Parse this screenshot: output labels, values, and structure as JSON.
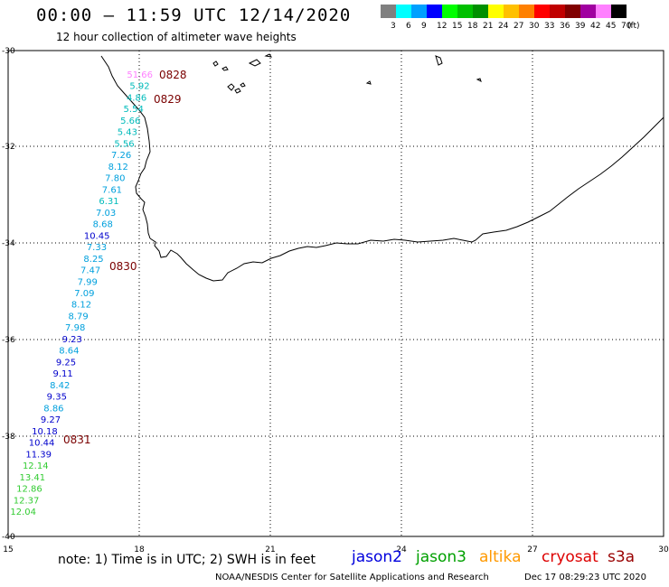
{
  "title": "00:00 – 11:59 UTC 12/14/2020",
  "subtitle": "12 hour collection of altimeter wave heights",
  "scale": {
    "labels": [
      "3",
      "6",
      "9",
      "12",
      "15",
      "18",
      "21",
      "24",
      "27",
      "30",
      "33",
      "36",
      "39",
      "42",
      "45",
      "70"
    ],
    "unit": "(ft)",
    "colors": [
      "#808080",
      "#00ffff",
      "#00a0ff",
      "#0000ff",
      "#00ff00",
      "#00c000",
      "#009000",
      "#ffff00",
      "#ffc000",
      "#ff8000",
      "#ff0000",
      "#c00000",
      "#800000",
      "#a000a0",
      "#ff80ff",
      "#000000"
    ]
  },
  "axes": {
    "lat_labels": [
      "-30",
      "-32",
      "-34",
      "-36",
      "-38",
      "-40"
    ],
    "lon_labels": [
      "15",
      "18",
      "21",
      "24",
      "27",
      "30"
    ]
  },
  "track": {
    "values": [
      "51.66",
      "5.92",
      "4.86",
      "5.54",
      "5.66",
      "5.43",
      "5.56",
      "7.26",
      "8.12",
      "7.80",
      "7.61",
      "6.31",
      "7.03",
      "8.68",
      "10.45",
      "7.33",
      "8.25",
      "7.47",
      "7.99",
      "7.09",
      "8.12",
      "8.79",
      "7.98",
      "9.23",
      "8.64",
      "9.25",
      "9.11",
      "8.42",
      "9.35",
      "8.86",
      "9.27",
      "10.18",
      "10.44",
      "11.39",
      "12.14",
      "13.41",
      "12.86",
      "12.37",
      "12.04"
    ],
    "colors": [
      "#ff80ff",
      "#00bbbb",
      "#00bbbb",
      "#00bbbb",
      "#00bbbb",
      "#00bbbb",
      "#00bbbb",
      "#00a0dd",
      "#00a0dd",
      "#00a0dd",
      "#00a0dd",
      "#00bbbb",
      "#00a0dd",
      "#00a0dd",
      "#0000cc",
      "#00a0dd",
      "#00a0dd",
      "#00a0dd",
      "#00a0dd",
      "#00a0dd",
      "#00a0dd",
      "#00a0dd",
      "#00a0dd",
      "#0000cc",
      "#00a0dd",
      "#0000cc",
      "#0000cc",
      "#00a0dd",
      "#0000cc",
      "#00a0dd",
      "#0000cc",
      "#0000cc",
      "#0000cc",
      "#0000cc",
      "#33cc33",
      "#33cc33",
      "#33cc33",
      "#33cc33",
      "#33cc33"
    ],
    "times": [
      "0828",
      "0829",
      "0830",
      "0831"
    ]
  },
  "footer": {
    "note": "note: 1) Time is in UTC; 2) SWH is in feet",
    "satellites": [
      {
        "name": "jason2",
        "color": "#0000dd"
      },
      {
        "name": "jason3",
        "color": "#00a000"
      },
      {
        "name": "altika",
        "color": "#ff9900"
      },
      {
        "name": "cryosat",
        "color": "#dd0000"
      },
      {
        "name": "s3a",
        "color": "#990000"
      }
    ],
    "credit": "NOAA/NESDIS Center for Satellite Applications and Research",
    "timestamp": "Dec 17 08:29:23 UTC 2020"
  }
}
